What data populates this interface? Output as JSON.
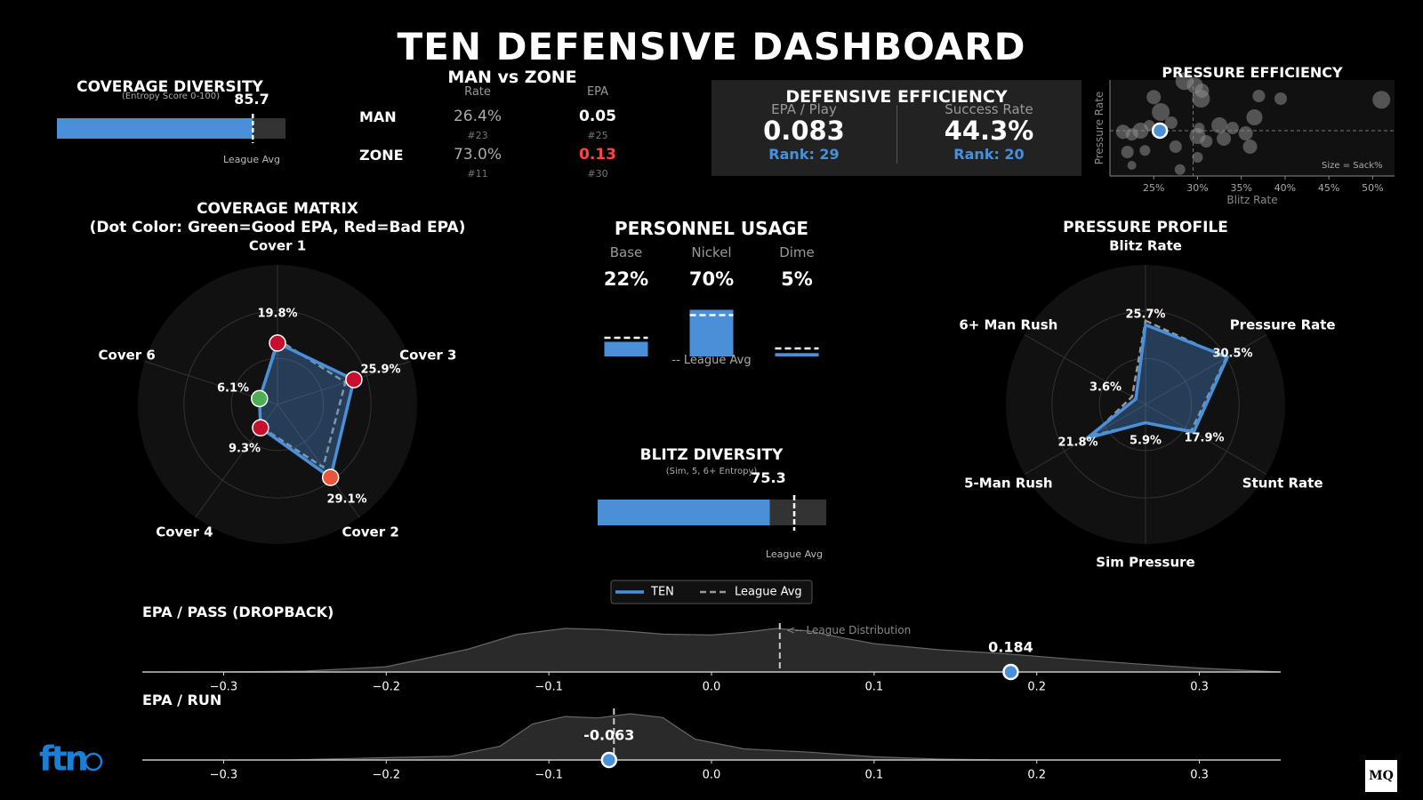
{
  "title": "TEN DEFENSIVE DASHBOARD",
  "coverage_diversity": {
    "title": "COVERAGE DIVERSITY",
    "subtitle": "(Entropy Score 0-100)",
    "value": 85.7,
    "value_label": "85.7",
    "league_avg": 85.7,
    "league_label": "League Avg"
  },
  "man_zone": {
    "title": "MAN vs ZONE",
    "col_rate": "Rate",
    "col_epa": "EPA",
    "rows": [
      {
        "label": "MAN",
        "rate": "26.4%",
        "rate_rank": "#23",
        "epa": "0.05",
        "epa_rank": "#25",
        "epa_color": "#ffffff"
      },
      {
        "label": "ZONE",
        "rate": "73.0%",
        "rate_rank": "#11",
        "epa": "0.13",
        "epa_rank": "#30",
        "epa_color": "#ff4444"
      }
    ]
  },
  "def_eff": {
    "title": "DEFENSIVE EFFICIENCY",
    "epa_label": "EPA / Play",
    "epa_value": "0.083",
    "epa_rank": "Rank: 29",
    "sr_label": "Success Rate",
    "sr_value": "44.3%",
    "sr_rank": "Rank: 20"
  },
  "personnel": {
    "title": "PERSONNEL USAGE",
    "league_label": "-- League Avg",
    "items": [
      {
        "label": "Base",
        "value": "22%",
        "pct": 22,
        "league": 28
      },
      {
        "label": "Nickel",
        "value": "70%",
        "pct": 70,
        "league": 62
      },
      {
        "label": "Dime",
        "value": "5%",
        "pct": 5,
        "league": 12
      }
    ]
  },
  "blitz_div": {
    "title": "BLITZ DIVERSITY",
    "subtitle": "(Sim, 5, 6+ Entropy)",
    "value": 75.3,
    "value_label": "75.3",
    "league_avg": 86,
    "league_label": "League Avg"
  },
  "legend": {
    "team": "TEN",
    "league": "League Avg"
  },
  "chart_data": [
    {
      "type": "radar",
      "title": "COVERAGE MATRIX",
      "subtitle": "(Dot Color: Green=Good EPA, Red=Bad EPA)",
      "rmax": 45,
      "axes": [
        {
          "label": "Cover 1",
          "value": 19.8,
          "value_label": "19.8%",
          "league": 21,
          "dot": "#c8102e"
        },
        {
          "label": "Cover 3",
          "value": 25.9,
          "value_label": "25.9%",
          "league": 23,
          "dot": "#c8102e"
        },
        {
          "label": "Cover 2",
          "value": 29.1,
          "value_label": "29.1%",
          "league": 25,
          "dot": "#e8553a"
        },
        {
          "label": "Cover 4",
          "value": 9.3,
          "value_label": "9.3%",
          "league": 9,
          "dot": "#c8102e"
        },
        {
          "label": "Cover 6",
          "value": 6.1,
          "value_label": "6.1%",
          "league": 6,
          "dot": "#4caf50"
        }
      ]
    },
    {
      "type": "radar",
      "title": "PRESSURE PROFILE",
      "rmax": 45,
      "axes": [
        {
          "label": "Blitz Rate",
          "value": 25.7,
          "value_label": "25.7%",
          "league": 27
        },
        {
          "label": "Pressure Rate",
          "value": 30.5,
          "value_label": "30.5%",
          "league": 30
        },
        {
          "label": "Stunt Rate",
          "value": 17.9,
          "value_label": "17.9%",
          "league": 17
        },
        {
          "label": "Sim Pressure",
          "value": 5.9,
          "value_label": "5.9%",
          "league": 6
        },
        {
          "label": "5-Man Rush",
          "value": 21.8,
          "value_label": "21.8%",
          "league": 20
        },
        {
          "label": "6+ Man Rush",
          "value": 3.6,
          "value_label": "3.6%",
          "league": 5
        }
      ]
    },
    {
      "type": "scatter",
      "title": "PRESSURE EFFICIENCY",
      "xlabel": "Blitz Rate",
      "ylabel": "Pressure Rate",
      "note": "Size = Sack%",
      "xlim": [
        20,
        52.5
      ],
      "ylim": [
        22,
        40
      ],
      "xticks": [
        "25%",
        "30%",
        "35%",
        "40%",
        "45%",
        "50%"
      ],
      "xtick_values": [
        25,
        30,
        35,
        40,
        45,
        50
      ],
      "team_point": {
        "x": 25.7,
        "y": 30.5
      },
      "league_mean": {
        "x": 29.5,
        "y": 30.5
      },
      "points": [
        {
          "x": 21.5,
          "y": 30.3,
          "s": 8
        },
        {
          "x": 22.5,
          "y": 29.8,
          "s": 7
        },
        {
          "x": 23.5,
          "y": 30.5,
          "s": 9
        },
        {
          "x": 24.5,
          "y": 31.5,
          "s": 6
        },
        {
          "x": 25.0,
          "y": 36.8,
          "s": 8
        },
        {
          "x": 25.8,
          "y": 34.0,
          "s": 10
        },
        {
          "x": 27.0,
          "y": 32.0,
          "s": 7
        },
        {
          "x": 28.5,
          "y": 39.8,
          "s": 10
        },
        {
          "x": 29.7,
          "y": 39.0,
          "s": 9
        },
        {
          "x": 30.5,
          "y": 38.0,
          "s": 8
        },
        {
          "x": 30.4,
          "y": 36.5,
          "s": 10
        },
        {
          "x": 30.0,
          "y": 29.5,
          "s": 9
        },
        {
          "x": 30.2,
          "y": 31.0,
          "s": 6
        },
        {
          "x": 31.0,
          "y": 28.5,
          "s": 7
        },
        {
          "x": 32.5,
          "y": 31.5,
          "s": 9
        },
        {
          "x": 33.0,
          "y": 29.0,
          "s": 8
        },
        {
          "x": 34.0,
          "y": 31.0,
          "s": 7
        },
        {
          "x": 35.5,
          "y": 30.0,
          "s": 8
        },
        {
          "x": 36.5,
          "y": 33.0,
          "s": 9
        },
        {
          "x": 37.0,
          "y": 37.0,
          "s": 7
        },
        {
          "x": 39.5,
          "y": 36.5,
          "s": 7
        },
        {
          "x": 51.0,
          "y": 36.3,
          "s": 10
        },
        {
          "x": 22.0,
          "y": 26.5,
          "s": 7
        },
        {
          "x": 24.0,
          "y": 26.8,
          "s": 6
        },
        {
          "x": 27.5,
          "y": 27.5,
          "s": 7
        },
        {
          "x": 30.0,
          "y": 25.5,
          "s": 6
        },
        {
          "x": 36.0,
          "y": 27.5,
          "s": 8
        },
        {
          "x": 22.5,
          "y": 24.0,
          "s": 5
        },
        {
          "x": 28.0,
          "y": 23.2,
          "s": 6
        }
      ]
    },
    {
      "type": "density",
      "title": "EPA / PASS (DROPBACK)",
      "annotation": "<-- League Distribution",
      "xlim": [
        -0.35,
        0.35
      ],
      "xticks": [
        "−0.3",
        "−0.2",
        "−0.1",
        "0.0",
        "0.1",
        "0.2",
        "0.3"
      ],
      "xtick_values": [
        -0.3,
        -0.2,
        -0.1,
        0.0,
        0.1,
        0.2,
        0.3
      ],
      "league_mean": 0.042,
      "team_value": 0.184,
      "team_label": "0.184",
      "curve_x": [
        -0.35,
        -0.3,
        -0.25,
        -0.2,
        -0.15,
        -0.12,
        -0.09,
        -0.07,
        -0.05,
        -0.03,
        0.0,
        0.02,
        0.04,
        0.06,
        0.08,
        0.1,
        0.14,
        0.18,
        0.22,
        0.26,
        0.3,
        0.35
      ],
      "curve_y": [
        0.0,
        0.003,
        0.02,
        0.12,
        0.52,
        0.86,
        1.0,
        0.98,
        0.93,
        0.87,
        0.85,
        0.91,
        1.0,
        0.94,
        0.79,
        0.65,
        0.51,
        0.42,
        0.3,
        0.19,
        0.09,
        0.0
      ]
    },
    {
      "type": "density",
      "title": "EPA / RUN",
      "xlim": [
        -0.35,
        0.35
      ],
      "xticks": [
        "−0.3",
        "−0.2",
        "−0.1",
        "0.0",
        "0.1",
        "0.2",
        "0.3"
      ],
      "xtick_values": [
        -0.3,
        -0.2,
        -0.1,
        0.0,
        0.1,
        0.2,
        0.3
      ],
      "league_mean": -0.06,
      "team_value": -0.063,
      "team_label": "-0.063",
      "curve_x": [
        -0.35,
        -0.26,
        -0.2,
        -0.16,
        -0.13,
        -0.11,
        -0.09,
        -0.07,
        -0.05,
        -0.03,
        -0.01,
        0.02,
        0.06,
        0.1,
        0.14,
        0.18,
        0.35
      ],
      "curve_y": [
        0.0,
        0.0,
        0.05,
        0.08,
        0.3,
        0.78,
        0.94,
        0.91,
        1.0,
        0.92,
        0.45,
        0.24,
        0.17,
        0.07,
        0.02,
        0.0,
        0.0
      ]
    }
  ],
  "logos": {
    "ftn": "ftn",
    "mq": "MQ"
  }
}
